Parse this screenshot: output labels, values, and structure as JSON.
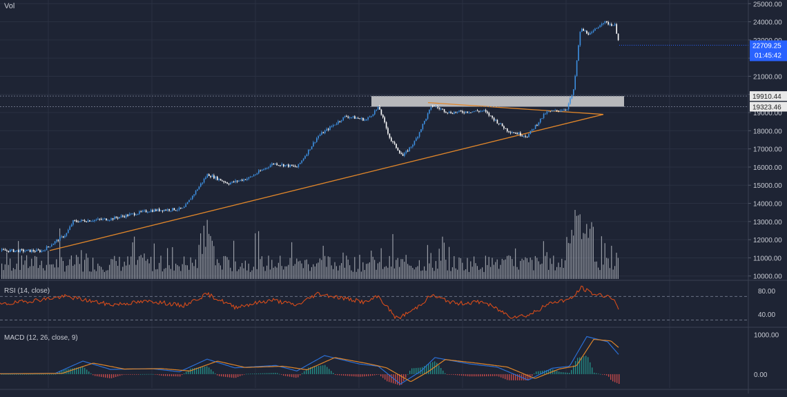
{
  "header": {
    "vol_label": "Vol"
  },
  "colors": {
    "background": "#1e2434",
    "grid": "#2a3142",
    "candle_up": "#3d8fe0",
    "candle_down": "#ffffff",
    "volume": "#b7bac2",
    "trendline": "#e0862a",
    "rsi_line": "#d94c1a",
    "macd_line": "#2b6fd6",
    "signal_line": "#e0862a",
    "hist_up": "#26a69a",
    "hist_down": "#ef5350",
    "axis_text": "#c9ccd4",
    "price_tag": "#2962ff",
    "resistance_box": "#d9d9d9"
  },
  "chart_data": [
    {
      "type": "candlestick",
      "panel": "price",
      "yaxis": {
        "scale": "linear",
        "ylim": [
          9800,
          25200
        ],
        "ticks": [
          "25000.00",
          "24000.00",
          "23000.00",
          "22000.00",
          "21000.00",
          "20000.00",
          "19000.00",
          "18000.00",
          "17000.00",
          "16000.00",
          "15000.00",
          "14000.00",
          "13000.00",
          "12000.00",
          "11000.00",
          "10000.00"
        ],
        "tick_values": [
          25000,
          24000,
          23000,
          22000,
          21000,
          20000,
          19000,
          18000,
          17000,
          16000,
          15000,
          14000,
          13000,
          12000,
          11000,
          10000
        ]
      },
      "price_levels": [
        {
          "value": 19910.44,
          "label": "19910.44"
        },
        {
          "value": 19323.46,
          "label": "19323.46"
        }
      ],
      "last_price": {
        "value": 22709.25,
        "label": "22709.25",
        "countdown": "01:45:42"
      },
      "resistance_zone": {
        "low": 19323.46,
        "high": 19910.44
      },
      "path_keypoints": [
        {
          "x": 0,
          "price": 11400
        },
        {
          "x": 60,
          "price": 11380
        },
        {
          "x": 95,
          "price": 12300
        },
        {
          "x": 105,
          "price": 13000
        },
        {
          "x": 160,
          "price": 13150
        },
        {
          "x": 215,
          "price": 13600
        },
        {
          "x": 265,
          "price": 13700
        },
        {
          "x": 300,
          "price": 15600
        },
        {
          "x": 330,
          "price": 15100
        },
        {
          "x": 360,
          "price": 15400
        },
        {
          "x": 395,
          "price": 16200
        },
        {
          "x": 430,
          "price": 16000
        },
        {
          "x": 460,
          "price": 17700
        },
        {
          "x": 500,
          "price": 18800
        },
        {
          "x": 530,
          "price": 18600
        },
        {
          "x": 548,
          "price": 19300
        },
        {
          "x": 565,
          "price": 17500
        },
        {
          "x": 583,
          "price": 16600
        },
        {
          "x": 600,
          "price": 17400
        },
        {
          "x": 625,
          "price": 19400
        },
        {
          "x": 650,
          "price": 19000
        },
        {
          "x": 700,
          "price": 19100
        },
        {
          "x": 735,
          "price": 18000
        },
        {
          "x": 763,
          "price": 17700
        },
        {
          "x": 790,
          "price": 19000
        },
        {
          "x": 820,
          "price": 19200
        },
        {
          "x": 830,
          "price": 20200
        },
        {
          "x": 840,
          "price": 23600
        },
        {
          "x": 855,
          "price": 23300
        },
        {
          "x": 872,
          "price": 24000
        },
        {
          "x": 890,
          "price": 23800
        },
        {
          "x": 897,
          "price": 22709
        }
      ],
      "trendlines": [
        {
          "name": "ascending-support",
          "from": [
            72,
            11400
          ],
          "to": [
            874,
            18900
          ]
        },
        {
          "name": "descending-resistance",
          "from": [
            620,
            19550
          ],
          "to": [
            874,
            18900
          ]
        }
      ]
    },
    {
      "type": "bar",
      "panel": "volume",
      "series": [
        {
          "name": "Vol",
          "values": []
        }
      ]
    },
    {
      "type": "line",
      "panel": "rsi",
      "title": "RSI (14, close)",
      "ylim": [
        20,
        95
      ],
      "ticks": [
        "80.00",
        "40.00"
      ],
      "tick_values": [
        80,
        40
      ],
      "bands": [
        70,
        30
      ],
      "keypoints": [
        {
          "x": 0,
          "v": 56
        },
        {
          "x": 95,
          "v": 70
        },
        {
          "x": 160,
          "v": 56
        },
        {
          "x": 220,
          "v": 62
        },
        {
          "x": 265,
          "v": 54
        },
        {
          "x": 300,
          "v": 74
        },
        {
          "x": 340,
          "v": 52
        },
        {
          "x": 395,
          "v": 64
        },
        {
          "x": 430,
          "v": 55
        },
        {
          "x": 460,
          "v": 75
        },
        {
          "x": 530,
          "v": 60
        },
        {
          "x": 548,
          "v": 70
        },
        {
          "x": 575,
          "v": 32
        },
        {
          "x": 600,
          "v": 48
        },
        {
          "x": 625,
          "v": 72
        },
        {
          "x": 660,
          "v": 58
        },
        {
          "x": 700,
          "v": 61
        },
        {
          "x": 740,
          "v": 36
        },
        {
          "x": 765,
          "v": 38
        },
        {
          "x": 800,
          "v": 60
        },
        {
          "x": 828,
          "v": 66
        },
        {
          "x": 842,
          "v": 85
        },
        {
          "x": 860,
          "v": 74
        },
        {
          "x": 885,
          "v": 70
        },
        {
          "x": 897,
          "v": 48
        }
      ]
    },
    {
      "type": "line",
      "panel": "macd",
      "title": "MACD (12, 26, close, 9)",
      "ylim": [
        -350,
        1150
      ],
      "ticks": [
        "1000.00",
        "0.00"
      ],
      "tick_values": [
        1000,
        0
      ],
      "series": [
        {
          "name": "MACD",
          "keypoints": [
            {
              "x": 0,
              "v": 10
            },
            {
              "x": 80,
              "v": 20
            },
            {
              "x": 120,
              "v": 330
            },
            {
              "x": 160,
              "v": 120
            },
            {
              "x": 220,
              "v": 140
            },
            {
              "x": 260,
              "v": 60
            },
            {
              "x": 300,
              "v": 380
            },
            {
              "x": 340,
              "v": 160
            },
            {
              "x": 400,
              "v": 220
            },
            {
              "x": 430,
              "v": 80
            },
            {
              "x": 470,
              "v": 470
            },
            {
              "x": 520,
              "v": 260
            },
            {
              "x": 548,
              "v": 200
            },
            {
              "x": 580,
              "v": -250
            },
            {
              "x": 610,
              "v": 80
            },
            {
              "x": 630,
              "v": 420
            },
            {
              "x": 680,
              "v": 260
            },
            {
              "x": 720,
              "v": 180
            },
            {
              "x": 765,
              "v": -150
            },
            {
              "x": 800,
              "v": 150
            },
            {
              "x": 825,
              "v": 200
            },
            {
              "x": 850,
              "v": 950
            },
            {
              "x": 880,
              "v": 820
            },
            {
              "x": 897,
              "v": 480
            }
          ]
        },
        {
          "name": "Signal",
          "keypoints": [
            {
              "x": 0,
              "v": 10
            },
            {
              "x": 90,
              "v": 20
            },
            {
              "x": 135,
              "v": 280
            },
            {
              "x": 180,
              "v": 130
            },
            {
              "x": 235,
              "v": 140
            },
            {
              "x": 275,
              "v": 80
            },
            {
              "x": 315,
              "v": 330
            },
            {
              "x": 355,
              "v": 170
            },
            {
              "x": 410,
              "v": 200
            },
            {
              "x": 445,
              "v": 110
            },
            {
              "x": 485,
              "v": 420
            },
            {
              "x": 535,
              "v": 260
            },
            {
              "x": 560,
              "v": 160
            },
            {
              "x": 595,
              "v": -190
            },
            {
              "x": 620,
              "v": 60
            },
            {
              "x": 645,
              "v": 370
            },
            {
              "x": 695,
              "v": 270
            },
            {
              "x": 735,
              "v": 180
            },
            {
              "x": 775,
              "v": -110
            },
            {
              "x": 810,
              "v": 130
            },
            {
              "x": 835,
              "v": 210
            },
            {
              "x": 860,
              "v": 880
            },
            {
              "x": 885,
              "v": 840
            },
            {
              "x": 897,
              "v": 660
            }
          ]
        }
      ]
    }
  ]
}
